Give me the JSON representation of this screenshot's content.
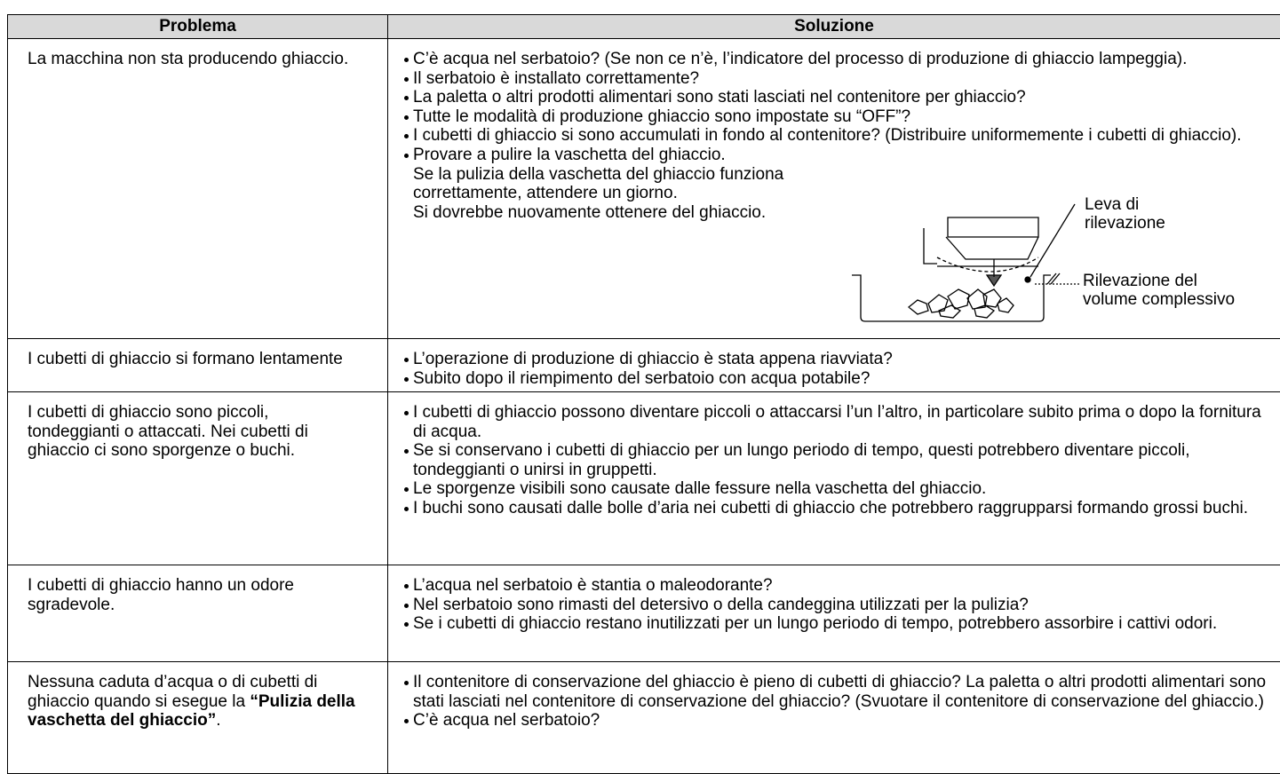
{
  "table": {
    "headers": [
      "Problema",
      "Soluzione"
    ],
    "rows": [
      {
        "problem": "La macchina non sta producendo ghiaccio.",
        "solutions": [
          "C’è acqua nel serbatoio? (Se non ce n’è, l’indicatore del processo di produzione di ghiaccio lampeggia).",
          "Il serbatoio è installato correttamente?",
          "La paletta o altri prodotti alimentari sono stati lasciati nel contenitore per ghiaccio?",
          "Tutte le modalità di produzione ghiaccio sono impostate su “OFF”?",
          "I cubetti di ghiaccio si sono accumulati in fondo al contenitore? (Distribuire uniformemente i cubetti di ghiaccio)."
        ],
        "tail": [
          "Provare a pulire la vaschetta del ghiaccio.",
          "Se la pulizia della vaschetta del ghiaccio funziona correttamente, attendere un giorno.",
          "Si dovrebbe nuovamente ottenere del ghiaccio."
        ],
        "figure": {
          "lever_label": "Leva di rilevazione",
          "volume_label": "Rilevazione del volume complessivo"
        }
      },
      {
        "problem": "I cubetti di ghiaccio si formano lentamente",
        "solutions": [
          "L’operazione di produzione di ghiaccio è stata appena riavviata?",
          "Subito dopo il riempimento del serbatoio con acqua potabile?"
        ]
      },
      {
        "problem": "I cubetti di ghiaccio sono piccoli, tondeggianti o attaccati. Nei cubetti di ghiaccio ci sono sporgenze o buchi.",
        "solutions": [
          "I cubetti di ghiaccio possono diventare piccoli o attaccarsi l’un l’altro, in particolare subito prima o dopo la fornitura di acqua.",
          "Se si conservano i cubetti di ghiaccio per un lungo periodo di tempo, questi potrebbero diventare piccoli, tondeggianti o unirsi in gruppetti.",
          "Le sporgenze visibili sono causate dalle fessure nella vaschetta del ghiaccio.",
          "I buchi sono causati dalle bolle d’aria nei cubetti di ghiaccio che potrebbero raggrupparsi formando grossi buchi."
        ]
      },
      {
        "problem": "I cubetti di ghiaccio hanno un odore sgradevole.",
        "solutions": [
          "L’acqua nel serbatoio è stantia o maleodorante?",
          "Nel serbatoio sono rimasti del detersivo o della candeggina utilizzati per la pulizia?",
          "Se i cubetti di ghiaccio restano inutilizzati per un lungo periodo di tempo, potrebbero assorbire i cattivi odori."
        ]
      },
      {
        "problem": {
          "text": "Nessuna caduta d’acqua o di cubetti di ghiaccio quando si esegue la ",
          "bold": "“Pulizia della vaschetta del ghiaccio”",
          "end": "."
        },
        "solutions": [
          "Il contenitore di conservazione del ghiaccio è pieno di cubetti di ghiaccio? La paletta o altri prodotti alimentari sono stati lasciati nel contenitore di conservazione del ghiaccio? (Svuotare il contenitore di conservazione del ghiaccio.)",
          "C’è acqua nel serbatoio?"
        ]
      }
    ]
  }
}
